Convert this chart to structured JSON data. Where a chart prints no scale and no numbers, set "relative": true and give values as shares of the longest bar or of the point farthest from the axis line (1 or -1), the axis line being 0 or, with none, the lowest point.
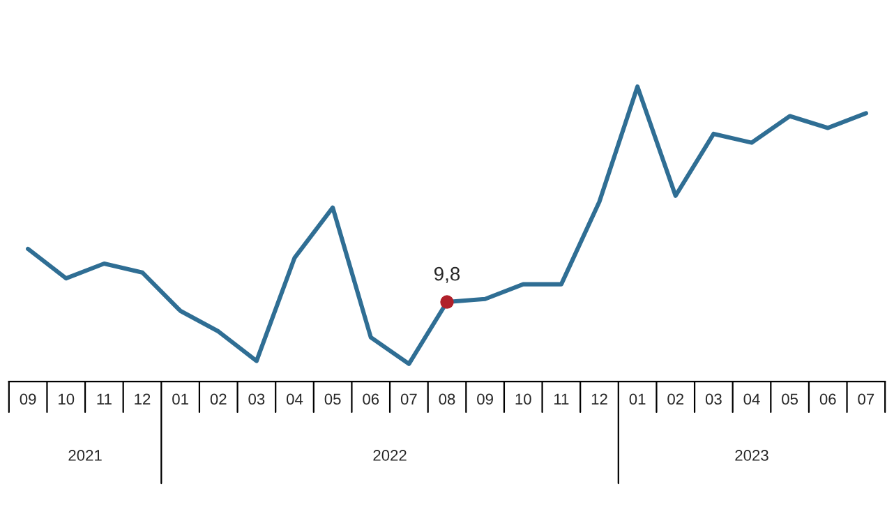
{
  "chart_data": {
    "type": "line",
    "relative": true,
    "categories": [
      "09",
      "10",
      "11",
      "12",
      "01",
      "02",
      "03",
      "04",
      "05",
      "06",
      "07",
      "08",
      "09",
      "10",
      "11",
      "12",
      "01",
      "02",
      "03",
      "04",
      "05",
      "06",
      "07"
    ],
    "series": [
      {
        "color": "#2f6e94",
        "values": [
          0.45,
          0.35,
          0.4,
          0.37,
          0.24,
          0.17,
          0.07,
          0.42,
          0.59,
          0.15,
          0.06,
          0.27,
          0.28,
          0.33,
          0.33,
          0.61,
          1,
          0.63,
          0.84,
          0.81,
          0.9,
          0.86,
          0.91
        ]
      }
    ],
    "annotations": [
      {
        "text": "9,8",
        "x": "08",
        "y": 0.27
      },
      "2021",
      "2022",
      "2023"
    ],
    "grid": false,
    "legend": false
  }
}
